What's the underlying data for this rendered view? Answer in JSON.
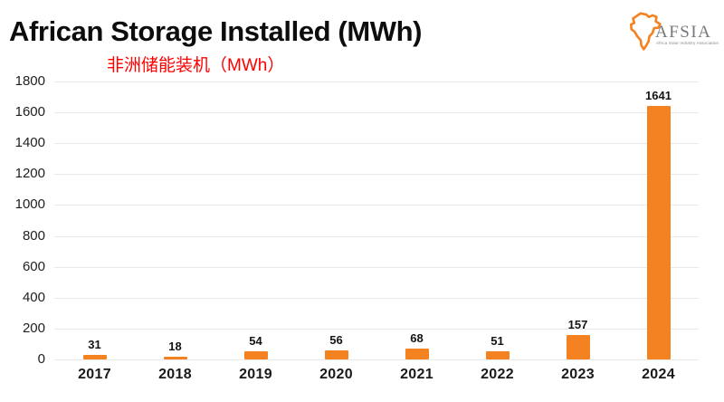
{
  "header": {
    "title": "African Storage Installed (MWh)",
    "subtitle": "非洲储能装机（MWh）",
    "title_color": "#0d0d0d",
    "subtitle_color": "#ff0000"
  },
  "logo": {
    "name": "AFSIA",
    "tagline": "Africa Solar Industry Association",
    "map_color": "#f58220",
    "text_color": "#77787b"
  },
  "chart_data": {
    "type": "bar",
    "title": "African Storage Installed (MWh)",
    "subtitle_zh": "非洲储能装机（MWh）",
    "categories": [
      "2017",
      "2018",
      "2019",
      "2020",
      "2021",
      "2022",
      "2023",
      "2024"
    ],
    "values": [
      31,
      18,
      54,
      56,
      68,
      51,
      157,
      1641
    ],
    "unit": "MWh",
    "xlabel": "",
    "ylabel": "",
    "ylim": [
      0,
      1800
    ],
    "ytick_step": 200,
    "y_tick_labels": [
      "0",
      "200",
      "400",
      "600",
      "800",
      "1000",
      "1200",
      "1400",
      "1600",
      "1800"
    ],
    "bar_color": "#f58220",
    "gridline_color": "#e9e9e9",
    "grid": true,
    "legend": "none",
    "value_labels_shown": true
  }
}
